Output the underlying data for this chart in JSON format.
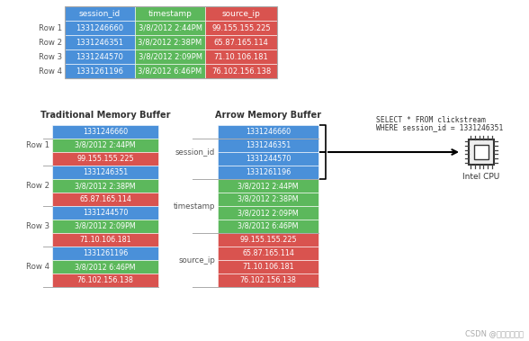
{
  "bg_color": "#ffffff",
  "blue_color": "#4a90d9",
  "green_color": "#5cb85c",
  "red_color": "#d9534f",
  "white": "#ffffff",
  "dark": "#333333",
  "gray": "#aaaaaa",
  "label_color": "#555555",
  "table_headers": [
    "session_id",
    "timestamp",
    "source_ip"
  ],
  "table_header_colors": [
    "#4a90d9",
    "#5cb85c",
    "#d9534f"
  ],
  "table_rows": [
    [
      "1331246660",
      "3/8/2012 2:44PM",
      "99.155.155.225"
    ],
    [
      "1331246351",
      "3/8/2012 2:38PM",
      "65.87.165.114"
    ],
    [
      "1331244570",
      "3/8/2012 2:09PM",
      "71.10.106.181"
    ],
    [
      "1331261196",
      "3/8/2012 6:46PM",
      "76.102.156.138"
    ]
  ],
  "row_labels": [
    "Row 1",
    "Row 2",
    "Row 3",
    "Row 4"
  ],
  "trad_title": "Traditional Memory Buffer",
  "arrow_title": "Arrow Memory Buffer",
  "trad_data": [
    [
      "1331246660",
      "blue"
    ],
    [
      "3/8/2012 2:44PM",
      "green"
    ],
    [
      "99.155.155.225",
      "red"
    ],
    [
      "1331246351",
      "blue"
    ],
    [
      "3/8/2012 2:38PM",
      "green"
    ],
    [
      "65.87.165.114",
      "red"
    ],
    [
      "1331244570",
      "blue"
    ],
    [
      "3/8/2012 2:09PM",
      "green"
    ],
    [
      "71.10.106.181",
      "red"
    ],
    [
      "1331261196",
      "blue"
    ],
    [
      "3/8/2012 6:46PM",
      "green"
    ],
    [
      "76.102.156.138",
      "red"
    ]
  ],
  "arrow_col_session": [
    "1331246660",
    "1331246351",
    "1331244570",
    "1331261196"
  ],
  "arrow_col_timestamp": [
    "3/8/2012 2:44PM",
    "3/8/2012 2:38PM",
    "3/8/2012 2:09PM",
    "3/8/2012 6:46PM"
  ],
  "arrow_col_source": [
    "99.155.155.225",
    "65.87.165.114",
    "71.10.106.181",
    "76.102.156.138"
  ],
  "col_labels": [
    "session_id",
    "timestamp",
    "source_ip"
  ],
  "sql_line1": "SELECT * FROM clickstream",
  "sql_line2": "WHERE session_id = 1331246351",
  "cpu_label": "Intel CPU",
  "watermark": "CSDN @一瓢一瓢的首"
}
